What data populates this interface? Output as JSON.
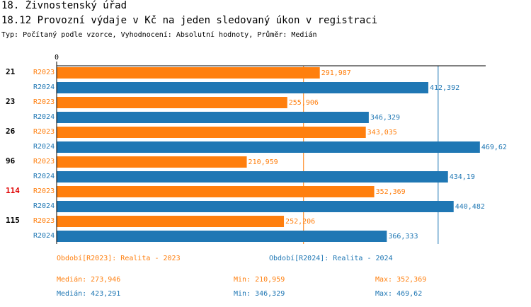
{
  "header": {
    "title": "18. Živnostenský úřad",
    "subtitle": "18.12 Provozní výdaje v Kč na jeden sledovaný úkon v registraci",
    "info": "Typ: Počítaný podle vzorce, Vyhodnocení: Absolutní hodnoty, Průměr: Medián"
  },
  "chart_data": {
    "type": "bar",
    "orientation": "horizontal",
    "axis_zero_label": "0",
    "xlim": [
      0,
      500
    ],
    "categories": [
      "21",
      "23",
      "26",
      "96",
      "114",
      "115"
    ],
    "highlight_category": "114",
    "series": [
      {
        "name": "R2023",
        "color": "#ff7f0e",
        "values": [
          291.987,
          255.906,
          343.035,
          210.959,
          352.369,
          252.206
        ],
        "labels": [
          "291,987",
          "255,906",
          "343,035",
          "210,959",
          "352,369",
          "252,206"
        ],
        "median": 273.946
      },
      {
        "name": "R2024",
        "color": "#1f77b4",
        "values": [
          412.392,
          346.329,
          469.62,
          434.19,
          440.482,
          366.333
        ],
        "labels": [
          "412,392",
          "346,329",
          "469,62",
          "434,19",
          "440,482",
          "366,333"
        ],
        "median": 423.291
      }
    ]
  },
  "legend": {
    "s2023": {
      "name": "Období[R2023]: Realita - 2023",
      "median": "Medián: 273,946",
      "min": "Min: 210,959",
      "max": "Max: 352,369"
    },
    "s2024": {
      "name": "Období[R2024]: Realita - 2024",
      "median": "Medián: 423,291",
      "min": "Min: 346,329",
      "max": "Max: 469,62"
    }
  }
}
